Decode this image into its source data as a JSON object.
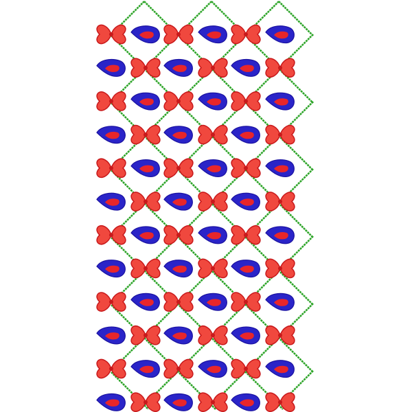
{
  "design": {
    "motifs": [
      "bow",
      "paisley"
    ],
    "rows": 12,
    "columns": 6,
    "row_pattern": [
      [
        "bow",
        "paisley",
        "bow",
        "paisley",
        "bow",
        "paisley"
      ],
      [
        "paisley",
        "bow",
        "paisley",
        "bow",
        "paisley",
        "bow"
      ]
    ],
    "colors": {
      "bow_fill": "#f0483e",
      "bow_stroke": "#c8191b",
      "paisley_outer": "#2a24c8",
      "paisley_outer_stroke": "#1a12a0",
      "paisley_inner": "#e8262a",
      "lattice": "#2fa52a",
      "background": "#ffffff"
    }
  }
}
